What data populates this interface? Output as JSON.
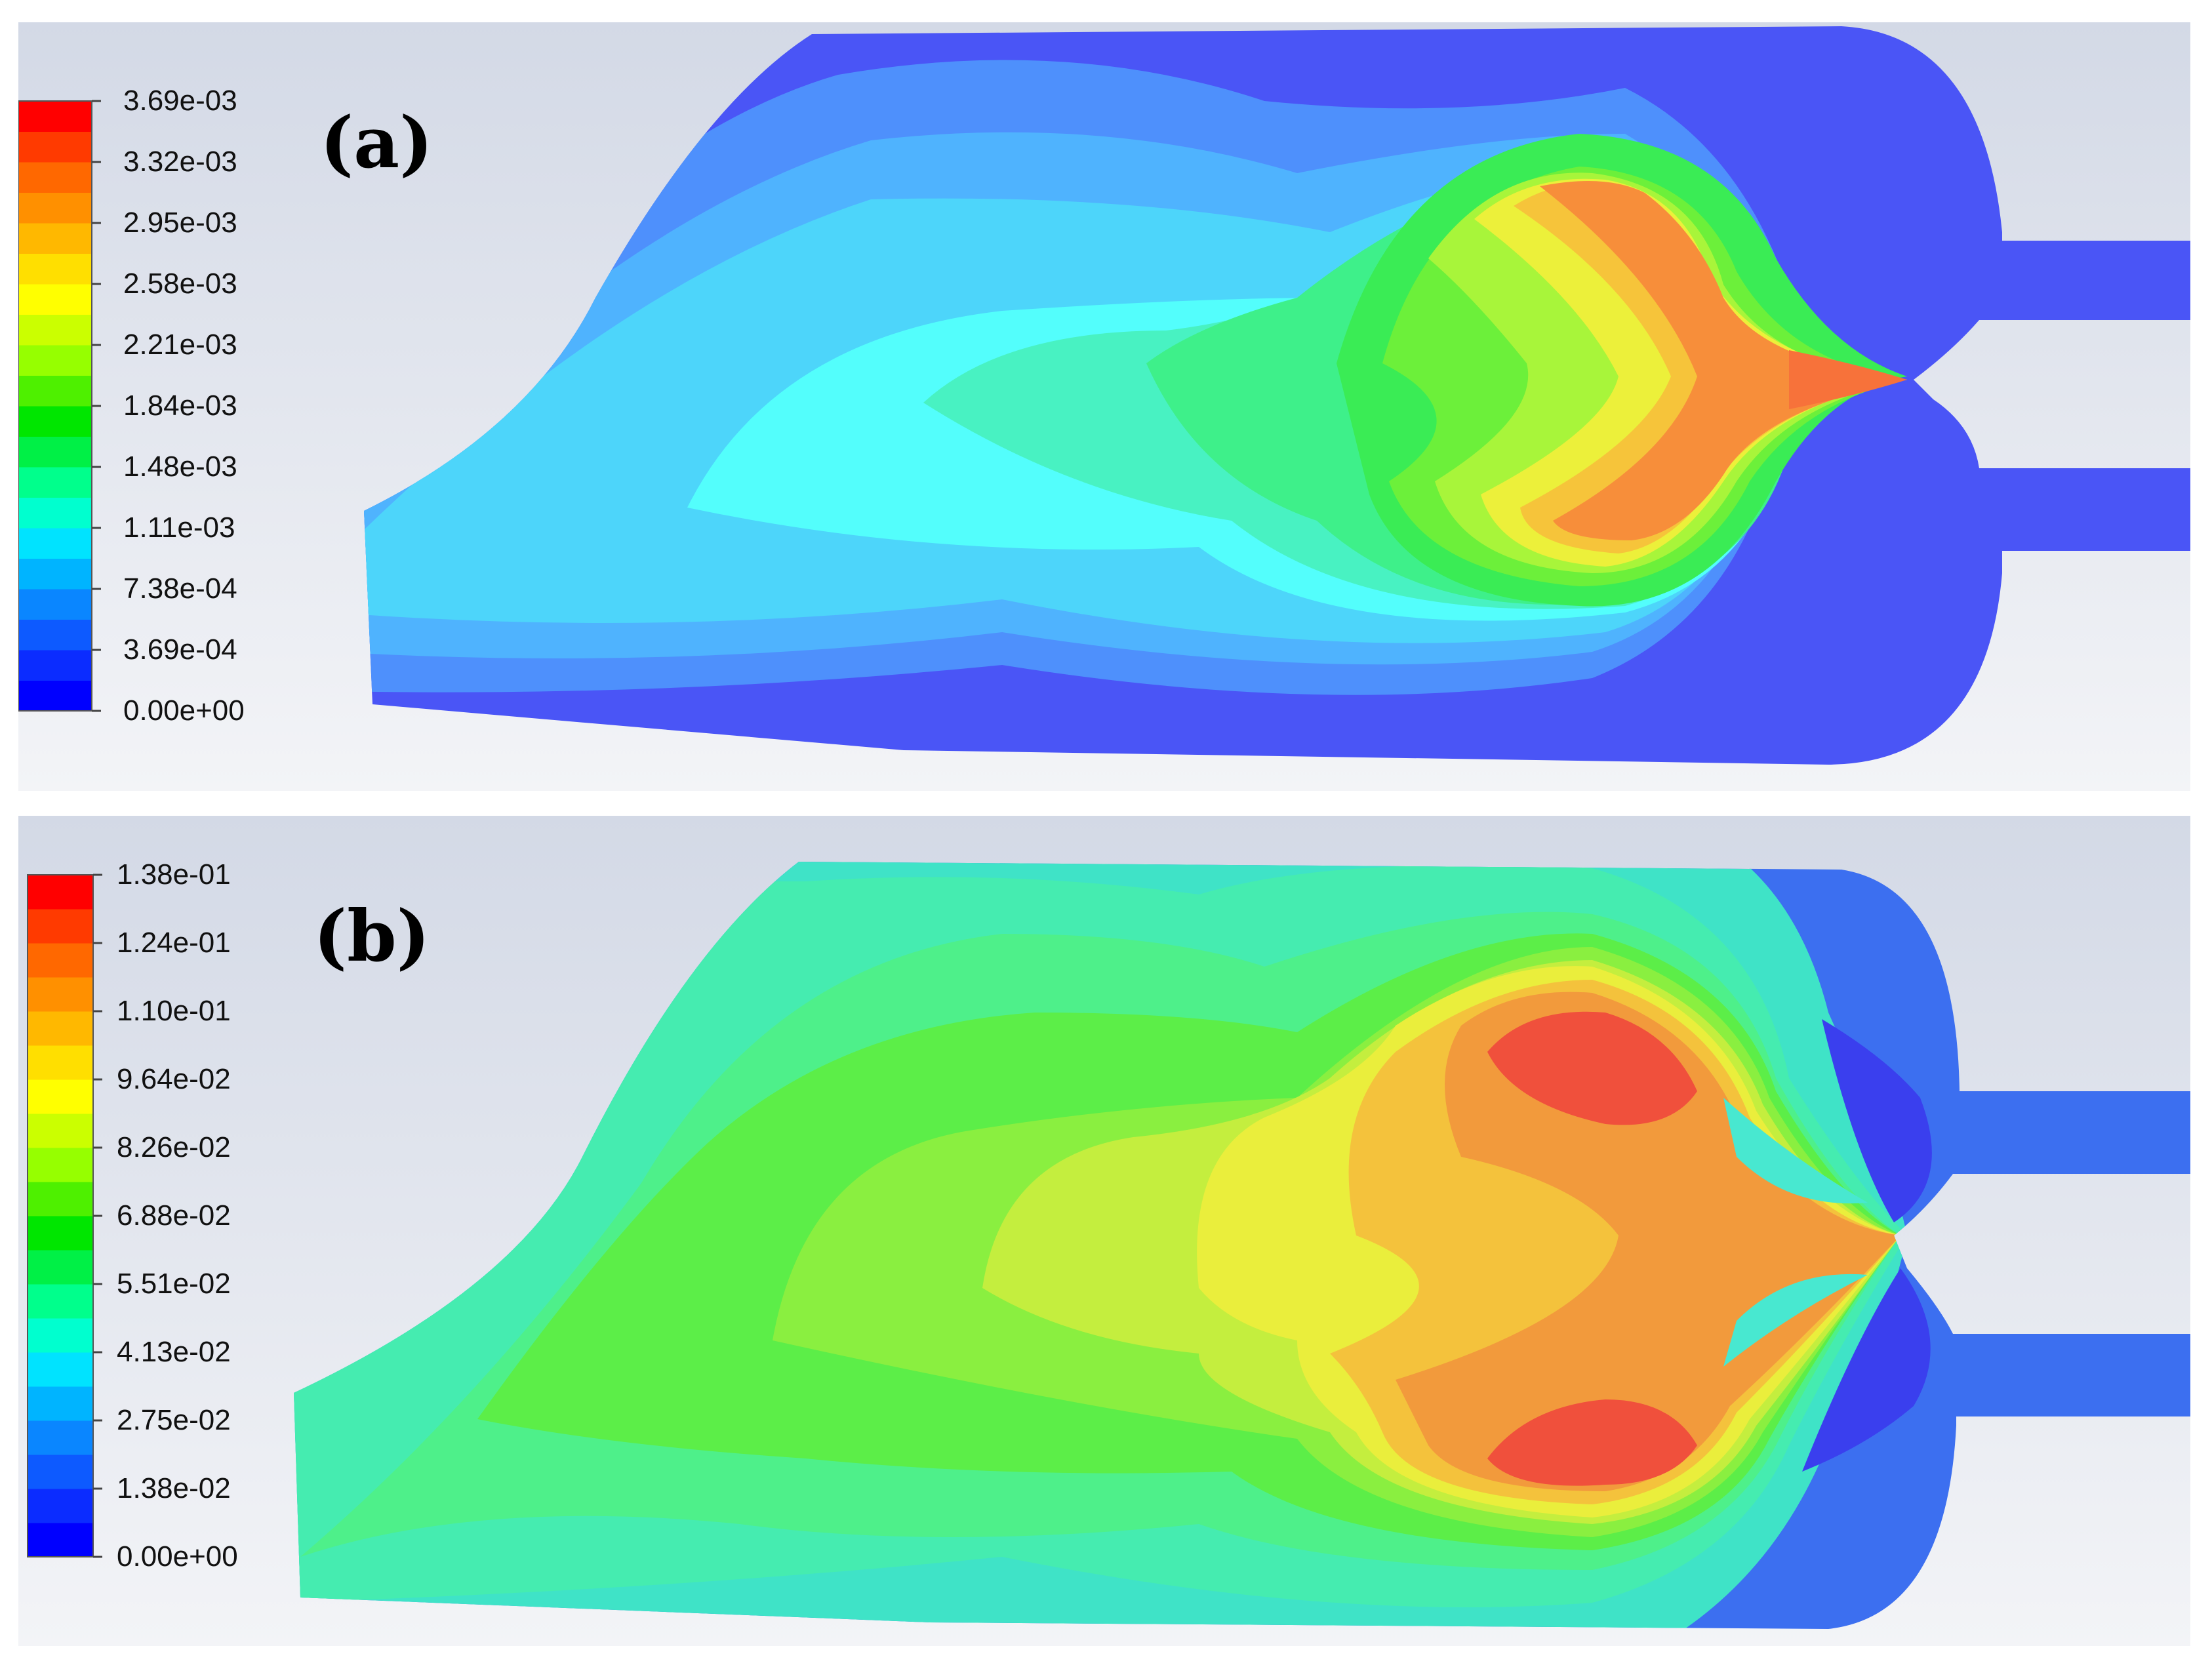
{
  "panels": [
    {
      "id": "a",
      "label": "(a)",
      "legend_ticks": [
        "3.69e-03",
        "3.32e-03",
        "2.95e-03",
        "2.58e-03",
        "2.21e-03",
        "1.84e-03",
        "1.48e-03",
        "1.11e-03",
        "7.38e-04",
        "3.69e-04",
        "0.00e+00"
      ],
      "legend_min": 0.0,
      "legend_max": 0.00369
    },
    {
      "id": "b",
      "label": "(b)",
      "legend_ticks": [
        "1.38e-01",
        "1.24e-01",
        "1.10e-01",
        "9.64e-02",
        "8.26e-02",
        "6.88e-02",
        "5.51e-02",
        "4.13e-02",
        "2.75e-02",
        "1.38e-02",
        "0.00e+00"
      ],
      "legend_min": 0.0,
      "legend_max": 0.138
    }
  ],
  "colormap": [
    "#0000ff",
    "#0b2cff",
    "#0d5aff",
    "#0a86ff",
    "#00b4ff",
    "#00e3ff",
    "#00ffcf",
    "#00ff8c",
    "#00f046",
    "#00e600",
    "#4ef000",
    "#96ff00",
    "#cbff00",
    "#ffff00",
    "#ffdf00",
    "#ffb800",
    "#ff9000",
    "#ff6800",
    "#ff3a00",
    "#ff0000"
  ],
  "background": {
    "top": "#d3d9e6",
    "bottom": "#f3f4f7"
  }
}
